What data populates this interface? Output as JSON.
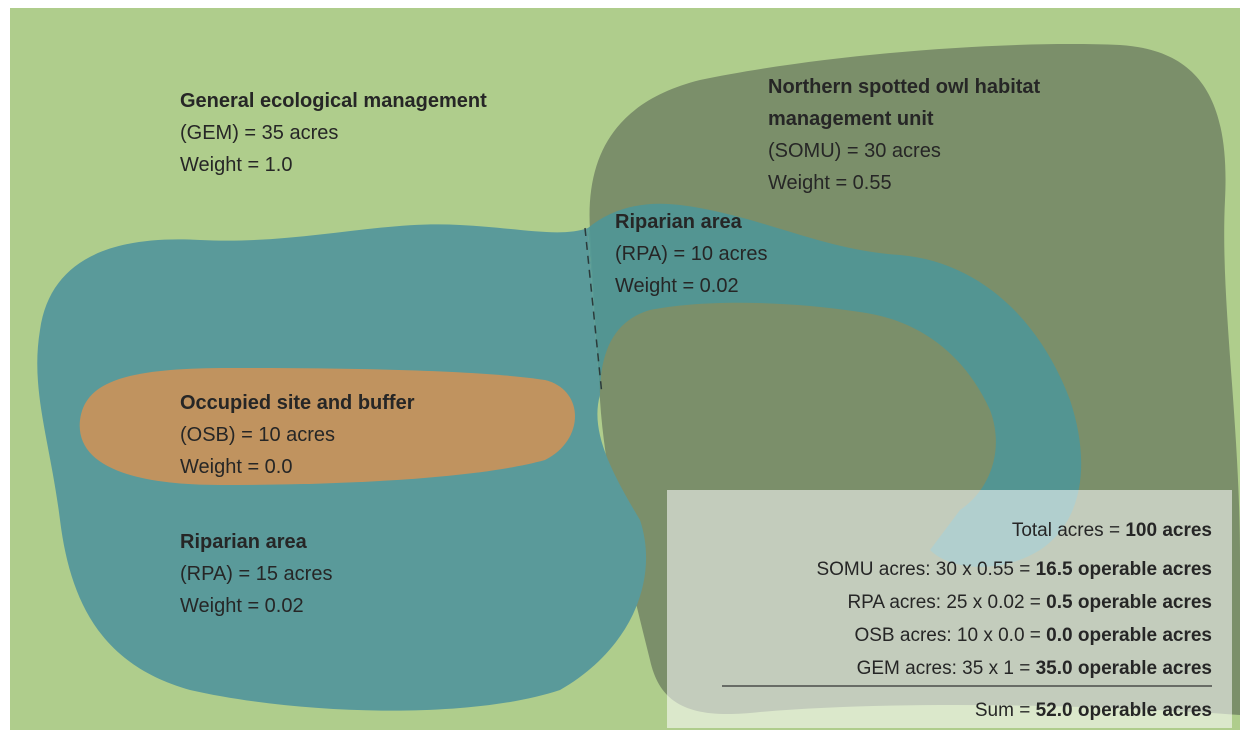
{
  "zones": [
    {
      "title_lines": [
        "General ecological management"
      ],
      "area": "(GEM) = 35 acres",
      "weight": "Weight = 1.0"
    },
    {
      "title_lines": [
        "Northern spotted owl habitat",
        "management unit"
      ],
      "area": "(SOMU) = 30 acres",
      "weight": "Weight = 0.55"
    },
    {
      "title_lines": [
        "Riparian area"
      ],
      "area": "(RPA) = 10 acres",
      "weight": "Weight = 0.02"
    },
    {
      "title_lines": [
        "Occupied site and buffer"
      ],
      "area": "(OSB) = 10 acres",
      "weight": "Weight = 0.0"
    },
    {
      "title_lines": [
        "Riparian area"
      ],
      "area": "(RPA) = 15 acres",
      "weight": "Weight = 0.02"
    }
  ],
  "summary": {
    "lines": [
      {
        "label": "Total acres =",
        "result": "100 acres"
      },
      {
        "label": "SOMU acres: 30 x 0.55 =",
        "result": "16.5 operable acres"
      },
      {
        "label": "RPA acres: 25 x 0.02 =",
        "result": "0.5 operable acres"
      },
      {
        "label": "OSB acres: 10 x 0.0 =",
        "result": "0.0 operable acres"
      },
      {
        "label": "GEM acres: 35 x 1 =",
        "result": "35.0 operable acres"
      }
    ],
    "sum": {
      "label": "Sum =",
      "result": "52.0 operable acres"
    }
  }
}
